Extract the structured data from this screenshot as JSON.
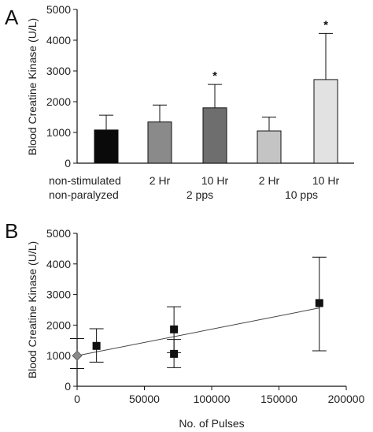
{
  "panel_labels": [
    "A",
    "B"
  ],
  "chart_data": [
    {
      "type": "bar",
      "panel": "A",
      "ylabel": "Blood Creatine Kinase (U/L)",
      "ylim": [
        0,
        5000
      ],
      "yticks": [
        "0",
        "1000",
        "2000",
        "3000",
        "4000",
        "5000"
      ],
      "categories": [
        "non-stimulated",
        "2 Hr",
        "10 Hr",
        "2 Hr",
        "10 Hr"
      ],
      "values": [
        1080,
        1340,
        1800,
        1050,
        2720
      ],
      "error_upper": [
        1560,
        1890,
        2560,
        1500,
        4220
      ],
      "significance": [
        "",
        "",
        "*",
        "",
        "*"
      ],
      "bar_colors": [
        "#0a0a0a",
        "#8a8a8a",
        "#6e6e6e",
        "#c4c4c4",
        "#e2e2e2"
      ],
      "group_labels": [
        "non-paralyzed",
        "2 pps",
        "10 pps"
      ],
      "grid": false
    },
    {
      "type": "scatter",
      "panel": "B",
      "xlabel": "No. of Pulses",
      "ylabel": "Blood Creatine Kinase (U/L)",
      "xlim": [
        0,
        200000
      ],
      "ylim": [
        0,
        5000
      ],
      "xticks": [
        "0",
        "50000",
        "100000",
        "150000",
        "200000"
      ],
      "yticks": [
        "0",
        "1000",
        "2000",
        "3000",
        "4000",
        "5000"
      ],
      "points": [
        {
          "x": 0,
          "y": 1000,
          "err_low": 580,
          "err_high": 1560,
          "marker": "diamond",
          "color": "#8a8a8a"
        },
        {
          "x": 14400,
          "y": 1320,
          "err_low": 790,
          "err_high": 1880,
          "marker": "square",
          "color": "#111111"
        },
        {
          "x": 72000,
          "y": 1860,
          "err_low": 1100,
          "err_high": 2600,
          "marker": "square",
          "color": "#111111"
        },
        {
          "x": 72000,
          "y": 1060,
          "err_low": 610,
          "err_high": 1530,
          "marker": "square",
          "color": "#111111"
        },
        {
          "x": 180000,
          "y": 2720,
          "err_low": 1160,
          "err_high": 4220,
          "marker": "square",
          "color": "#111111"
        }
      ],
      "trendline": {
        "x": [
          0,
          180000
        ],
        "y": [
          1000,
          2560
        ]
      },
      "grid": false
    }
  ]
}
